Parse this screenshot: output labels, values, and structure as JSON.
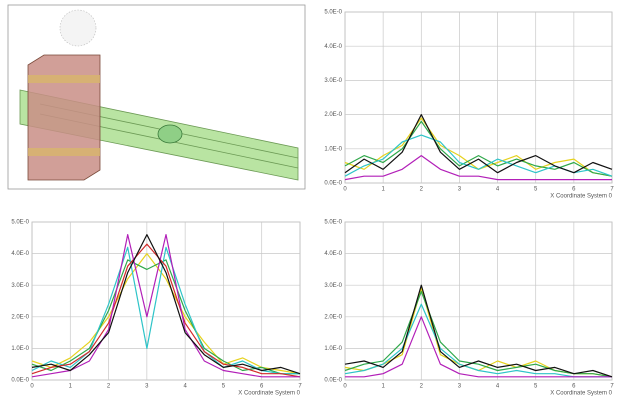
{
  "chart_data": [
    {
      "type": "line",
      "xlabel": "X Coordinate System 0",
      "x": [
        0,
        0.5,
        1,
        1.5,
        2,
        2.5,
        3,
        3.5,
        4,
        4.5,
        5,
        5.5,
        6,
        6.5,
        7
      ],
      "xlim": [
        0,
        7
      ],
      "xticks": [
        0,
        1,
        2,
        3,
        4,
        5,
        6,
        7
      ],
      "ylim": [
        0,
        5
      ],
      "yticks": [
        {
          "value": 0,
          "label": "0.0E-0"
        },
        {
          "value": 1,
          "label": "1.0E-0"
        },
        {
          "value": 2,
          "label": "2.0E-0"
        },
        {
          "value": 3,
          "label": "3.0E-0"
        },
        {
          "value": 4,
          "label": "4.0E-0"
        },
        {
          "value": 5,
          "label": "5.0E-0"
        }
      ],
      "grid": true,
      "series": [
        {
          "color": "#e6d21e",
          "values": [
            0.6,
            0.4,
            0.8,
            1.1,
            1.9,
            1.1,
            0.8,
            0.4,
            0.6,
            0.8,
            0.4,
            0.6,
            0.7,
            0.3,
            0.2
          ]
        },
        {
          "color": "#2fa84a",
          "values": [
            0.5,
            0.8,
            0.6,
            1.0,
            1.8,
            1.0,
            0.5,
            0.8,
            0.5,
            0.7,
            0.5,
            0.4,
            0.6,
            0.3,
            0.2
          ]
        },
        {
          "color": "#2ec4c8",
          "values": [
            0.2,
            0.5,
            0.7,
            1.2,
            1.4,
            1.2,
            0.6,
            0.4,
            0.7,
            0.5,
            0.3,
            0.5,
            0.3,
            0.4,
            0.2
          ]
        },
        {
          "color": "#b21fb8",
          "values": [
            0.1,
            0.2,
            0.2,
            0.4,
            0.8,
            0.4,
            0.2,
            0.2,
            0.1,
            0.1,
            0.1,
            0.1,
            0.1,
            0.1,
            0.1
          ]
        },
        {
          "color": "#111111",
          "values": [
            0.3,
            0.7,
            0.4,
            0.9,
            2.0,
            0.9,
            0.4,
            0.7,
            0.3,
            0.6,
            0.8,
            0.5,
            0.3,
            0.6,
            0.4
          ]
        }
      ]
    },
    {
      "type": "line",
      "xlabel": "X Coordinate System 0",
      "x": [
        0,
        0.5,
        1,
        1.5,
        2,
        2.5,
        3,
        3.5,
        4,
        4.5,
        5,
        5.5,
        6,
        6.5,
        7
      ],
      "xlim": [
        0,
        7
      ],
      "xticks": [
        0,
        1,
        2,
        3,
        4,
        5,
        6,
        7
      ],
      "ylim": [
        0,
        5
      ],
      "yticks": [
        {
          "value": 0,
          "label": "0.0E-0"
        },
        {
          "value": 1,
          "label": "1.0E-0"
        },
        {
          "value": 2,
          "label": "2.0E-0"
        },
        {
          "value": 3,
          "label": "3.0E-0"
        },
        {
          "value": 4,
          "label": "4.0E-0"
        },
        {
          "value": 5,
          "label": "5.0E-0"
        }
      ],
      "grid": true,
      "series": [
        {
          "color": "#e6d21e",
          "values": [
            0.6,
            0.4,
            0.7,
            1.2,
            2.0,
            3.2,
            4.0,
            3.2,
            2.0,
            1.2,
            0.5,
            0.7,
            0.4,
            0.3,
            0.2
          ]
        },
        {
          "color": "#2fa84a",
          "values": [
            0.5,
            0.3,
            0.6,
            1.0,
            2.2,
            3.8,
            3.5,
            3.8,
            2.2,
            1.0,
            0.6,
            0.3,
            0.4,
            0.2,
            0.2
          ]
        },
        {
          "color": "#2ec4c8",
          "values": [
            0.3,
            0.6,
            0.4,
            0.9,
            2.4,
            4.2,
            1.0,
            4.2,
            2.4,
            0.9,
            0.4,
            0.6,
            0.3,
            0.2,
            0.2
          ]
        },
        {
          "color": "#d22a2a",
          "values": [
            0.2,
            0.4,
            0.5,
            0.9,
            1.8,
            3.6,
            4.3,
            3.6,
            1.8,
            0.9,
            0.5,
            0.4,
            0.2,
            0.2,
            0.1
          ]
        },
        {
          "color": "#b21fb8",
          "values": [
            0.1,
            0.2,
            0.3,
            0.6,
            1.6,
            4.6,
            2.0,
            4.6,
            1.6,
            0.6,
            0.3,
            0.2,
            0.1,
            0.1,
            0.1
          ]
        },
        {
          "color": "#111111",
          "values": [
            0.4,
            0.5,
            0.3,
            0.8,
            1.5,
            3.4,
            4.6,
            3.4,
            1.5,
            0.8,
            0.4,
            0.5,
            0.3,
            0.4,
            0.2
          ]
        }
      ]
    },
    {
      "type": "line",
      "xlabel": "X Coordinate System 0",
      "x": [
        0,
        0.5,
        1,
        1.5,
        2,
        2.5,
        3,
        3.5,
        4,
        4.5,
        5,
        5.5,
        6,
        6.5,
        7
      ],
      "xlim": [
        0,
        7
      ],
      "xticks": [
        0,
        1,
        2,
        3,
        4,
        5,
        6,
        7
      ],
      "ylim": [
        0,
        5
      ],
      "yticks": [
        {
          "value": 0,
          "label": "0.0E-0"
        },
        {
          "value": 1,
          "label": "1.0E-0"
        },
        {
          "value": 2,
          "label": "2.0E-0"
        },
        {
          "value": 3,
          "label": "3.0E-0"
        },
        {
          "value": 4,
          "label": "4.0E-0"
        },
        {
          "value": 5,
          "label": "5.0E-0"
        }
      ],
      "grid": true,
      "series": [
        {
          "color": "#e6d21e",
          "values": [
            0.4,
            0.3,
            0.5,
            0.8,
            2.9,
            0.8,
            0.5,
            0.3,
            0.6,
            0.4,
            0.6,
            0.3,
            0.2,
            0.2,
            0.1
          ]
        },
        {
          "color": "#2fa84a",
          "values": [
            0.3,
            0.5,
            0.6,
            1.2,
            2.8,
            1.2,
            0.6,
            0.5,
            0.3,
            0.4,
            0.5,
            0.3,
            0.2,
            0.2,
            0.1
          ]
        },
        {
          "color": "#2ec4c8",
          "values": [
            0.2,
            0.3,
            0.5,
            1.0,
            2.4,
            1.0,
            0.5,
            0.3,
            0.2,
            0.3,
            0.2,
            0.2,
            0.1,
            0.1,
            0.1
          ]
        },
        {
          "color": "#b21fb8",
          "values": [
            0.1,
            0.1,
            0.2,
            0.5,
            2.0,
            0.5,
            0.2,
            0.1,
            0.1,
            0.1,
            0.1,
            0.1,
            0.1,
            0.1,
            0.1
          ]
        },
        {
          "color": "#111111",
          "values": [
            0.5,
            0.6,
            0.4,
            0.9,
            3.0,
            0.9,
            0.4,
            0.6,
            0.4,
            0.5,
            0.3,
            0.4,
            0.2,
            0.3,
            0.1
          ]
        }
      ]
    }
  ]
}
